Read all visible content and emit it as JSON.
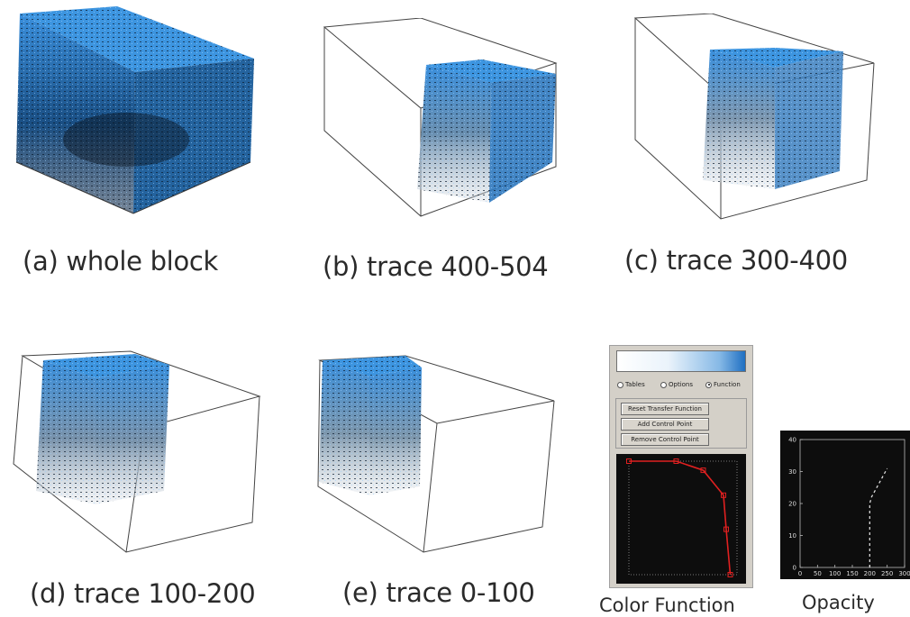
{
  "captions": {
    "a": "(a) whole block",
    "b": "(b) trace 400-504",
    "c": "(c) trace 300-400",
    "d": "(d) trace 100-200",
    "e": "(e) trace 0-100",
    "color_function": "Color Function",
    "opacity": "Opacity"
  },
  "tf_widget": {
    "radio_labels": [
      "Tables",
      "Options",
      "Function"
    ],
    "selected_radio": "Function",
    "buttons": [
      "Reset Transfer Function",
      "Add Control Point",
      "Remove Control Point"
    ]
  },
  "colors": {
    "volume_blue": "#2f86d6",
    "volume_dark": "#0b1e33",
    "curve_red": "#e02020",
    "plot_bg": "#0d0d0d"
  },
  "chart_data": [
    {
      "type": "line",
      "name_ref": "color_function_plot",
      "x": [
        0,
        35,
        55,
        70,
        72,
        75
      ],
      "y": [
        100,
        100,
        92,
        70,
        40,
        0
      ],
      "xlim": [
        0,
        80
      ],
      "ylim": [
        0,
        100
      ]
    },
    {
      "type": "line",
      "x": [
        200,
        200,
        205,
        250
      ],
      "y": [
        0,
        20,
        22,
        31
      ],
      "xlim": [
        0,
        300
      ],
      "ylim": [
        0,
        40
      ],
      "xticks": [
        "0",
        "50",
        "100",
        "150",
        "200",
        "250",
        "300"
      ],
      "yticks": [
        "0",
        "10",
        "20",
        "30",
        "40"
      ],
      "xlabel": "",
      "ylabel": "",
      "title": ""
    }
  ]
}
